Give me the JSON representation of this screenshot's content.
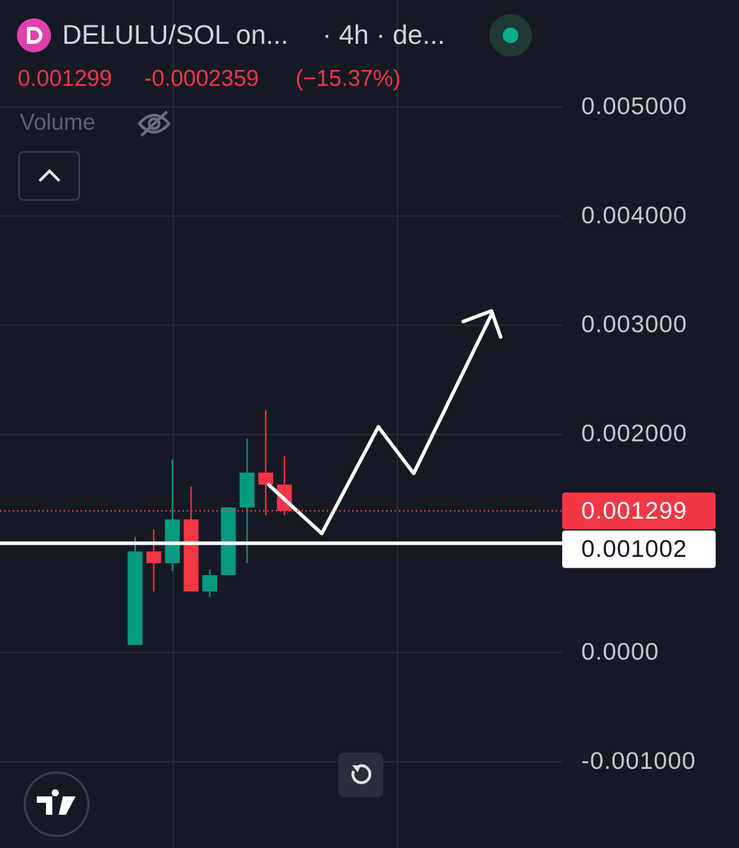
{
  "chart_data": {
    "type": "candlestick",
    "title": "DELULU/SOL on...",
    "subtitle": "· 4h · de...",
    "last_price": 0.001299,
    "change": -0.0002359,
    "change_percent": {
      "value": -15.37,
      "label": "(−15.37%)"
    },
    "volume_label": "Volume",
    "price_line": 0.001002,
    "categories": [
      null,
      null,
      null,
      null,
      null,
      null,
      null,
      null,
      null
    ],
    "open": [
      7e-05,
      0.000927,
      0.00082,
      0.00122,
      0.00056,
      0.00071,
      0.00133,
      0.00165,
      0.00154
    ],
    "high": [
      0.00106,
      0.00113,
      0.00177,
      0.00152,
      0.00076,
      0.00133,
      0.00196,
      0.00222,
      0.0018
    ],
    "low": [
      7e-05,
      0.00056,
      0.00075,
      0.00056,
      0.00051,
      0.00071,
      0.00082,
      0.00126,
      0.00126
    ],
    "close": [
      0.000927,
      0.00082,
      0.00122,
      0.00056,
      0.00071,
      0.00133,
      0.00165,
      0.00154,
      0.001299
    ],
    "up_color": "#089981",
    "down_color": "#f23645",
    "ylim": [
      -0.00179,
      0.00598
    ],
    "yticks": [
      {
        "value": -0.001,
        "label": "-0.001000"
      },
      {
        "value": 0,
        "label": "0.0000"
      },
      {
        "value": 0.002,
        "label": "0.002000"
      },
      {
        "value": 0.003,
        "label": "0.003000"
      },
      {
        "value": 0.004,
        "label": "0.004000"
      },
      {
        "value": 0.005,
        "label": "0.005000"
      }
    ],
    "grid": true
  }
}
